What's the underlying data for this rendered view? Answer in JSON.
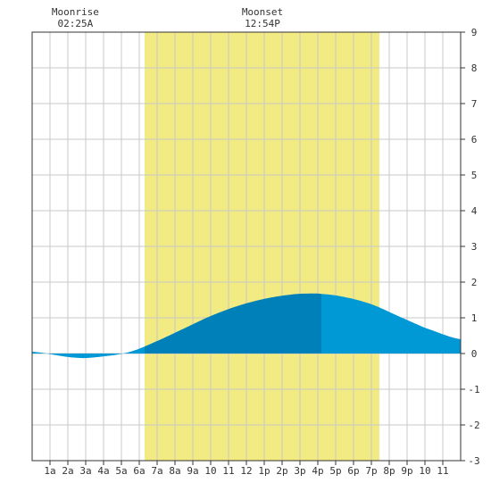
{
  "chart_data": {
    "type": "area",
    "x_unit": "hour",
    "xlim": [
      0,
      24
    ],
    "ylim": [
      -3,
      9
    ],
    "grid": true,
    "x_tick_labels": [
      "1a",
      "2a",
      "3a",
      "4a",
      "5a",
      "6a",
      "7a",
      "8a",
      "9a",
      "10",
      "11",
      "12",
      "1p",
      "2p",
      "3p",
      "4p",
      "5p",
      "6p",
      "7p",
      "8p",
      "9p",
      "10",
      "11"
    ],
    "y_ticks": [
      9,
      8,
      7,
      6,
      5,
      4,
      3,
      2,
      1,
      0,
      -1,
      -2,
      -3
    ],
    "daylight_band": {
      "start_hour": 6.3,
      "end_hour": 19.45,
      "color": "#f2ea82"
    },
    "events": [
      {
        "label": "Moonrise",
        "time": "02:25A",
        "hour": 2.42
      },
      {
        "label": "Moonset",
        "time": "12:54P",
        "hour": 12.9
      }
    ],
    "tide": {
      "x": [
        0,
        2.5,
        4,
        5.5,
        7,
        8.5,
        10,
        11.5,
        13,
        14.5,
        15.5,
        16.2,
        17.5,
        19,
        20.5,
        22,
        24
      ],
      "y": [
        0.05,
        -0.12,
        -0.08,
        0.05,
        0.35,
        0.7,
        1.05,
        1.33,
        1.53,
        1.65,
        1.68,
        1.67,
        1.58,
        1.38,
        1.05,
        0.72,
        0.4
      ],
      "split_hour": 16.2
    },
    "colors": {
      "tide_main": "#0099d6",
      "tide_daylight": "#0080b8",
      "grid": "#c8c8c8"
    }
  }
}
